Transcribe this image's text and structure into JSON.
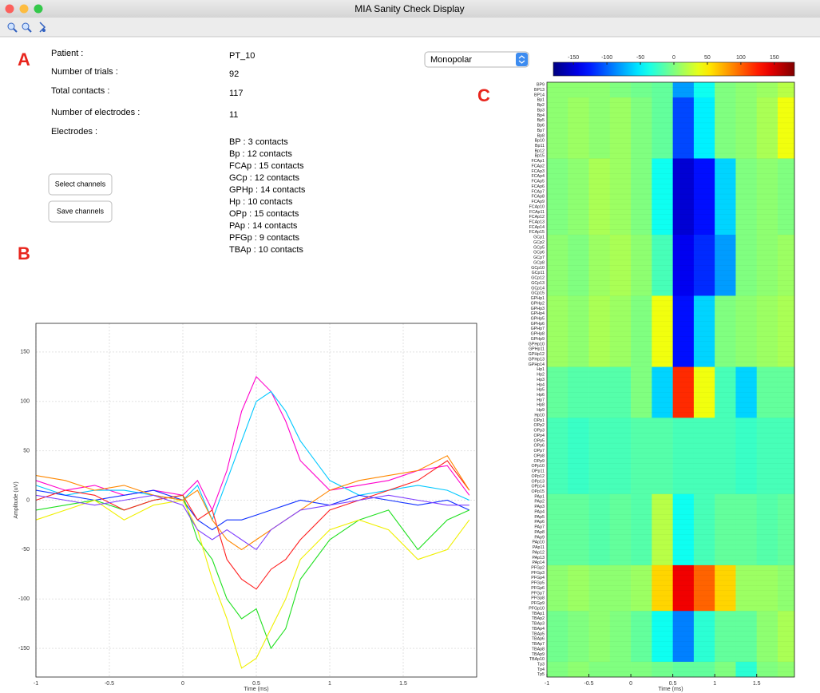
{
  "window_title": "MIA Sanity Check Display",
  "panel_labels": [
    "A",
    "B",
    "C"
  ],
  "info": [
    {
      "label": "Patient :",
      "value": "PT_10"
    },
    {
      "label": "Number of trials :",
      "value": 92
    },
    {
      "label": "Total contacts :",
      "value": 117
    },
    {
      "label": "Number of electrodes :",
      "value": 11
    },
    {
      "label": "Electrodes :"
    }
  ],
  "electrodes": [
    "BP  :  3 contacts",
    "Bp  :  12 contacts",
    "FCAp  :  15 contacts",
    "GCp  :  12 contacts",
    "GPHp  :  14 contacts",
    "Hp  :  10 contacts",
    "OPp  :  15 contacts",
    "PAp  :  14 contacts",
    "PFGp  :  9 contacts",
    "TBAp  :  10 contacts"
  ],
  "buttons": [
    "Select channels",
    "Save channels"
  ],
  "dropdown": "Monopolar",
  "chart_data": [
    {
      "type": "line",
      "xlabel": "Time (ms)",
      "ylabel": "Amplitude (uV)",
      "xlim": [
        -1,
        2
      ],
      "ylim": [
        -179,
        179
      ],
      "xticks": [
        -1,
        -0.5,
        0,
        0.5,
        1,
        1.5
      ],
      "yticks": [
        -150,
        -100,
        -50,
        0,
        50,
        100,
        150
      ],
      "grid": true,
      "x": [
        -1,
        -0.8,
        -0.6,
        -0.4,
        -0.2,
        0,
        0.1,
        0.2,
        0.3,
        0.4,
        0.5,
        0.6,
        0.7,
        0.8,
        1,
        1.2,
        1.4,
        1.6,
        1.8,
        1.95
      ],
      "series": [
        {
          "color": "#ff00cc",
          "values": [
            20,
            10,
            15,
            5,
            10,
            5,
            20,
            -10,
            30,
            90,
            125,
            110,
            80,
            40,
            10,
            15,
            20,
            30,
            35,
            5
          ]
        },
        {
          "color": "#00c8ff",
          "values": [
            15,
            5,
            10,
            10,
            5,
            0,
            15,
            -20,
            20,
            60,
            100,
            110,
            90,
            60,
            20,
            5,
            10,
            15,
            10,
            0
          ]
        },
        {
          "color": "#1030ff",
          "values": [
            10,
            5,
            0,
            5,
            10,
            0,
            -20,
            -30,
            -20,
            -20,
            -15,
            -10,
            -5,
            0,
            -5,
            5,
            0,
            -5,
            0,
            -10
          ]
        },
        {
          "color": "#20e020",
          "values": [
            -10,
            -5,
            0,
            -10,
            0,
            5,
            -40,
            -60,
            -100,
            -120,
            -110,
            -150,
            -130,
            -80,
            -40,
            -20,
            -10,
            -50,
            -20,
            -10
          ]
        },
        {
          "color": "#f0f000",
          "values": [
            -20,
            -10,
            0,
            -20,
            -5,
            0,
            -30,
            -80,
            -120,
            -170,
            -160,
            -130,
            -100,
            -60,
            -30,
            -20,
            -30,
            -60,
            -50,
            -20
          ]
        },
        {
          "color": "#ff2020",
          "values": [
            0,
            10,
            5,
            -10,
            0,
            5,
            -20,
            -10,
            -60,
            -80,
            -90,
            -70,
            -60,
            -40,
            -10,
            0,
            10,
            20,
            40,
            10
          ]
        },
        {
          "color": "#ff8800",
          "values": [
            25,
            20,
            10,
            15,
            5,
            0,
            10,
            -20,
            -40,
            -50,
            -40,
            -30,
            -20,
            -10,
            10,
            20,
            25,
            30,
            45,
            10
          ]
        },
        {
          "color": "#8040ff",
          "values": [
            5,
            0,
            -5,
            0,
            5,
            -5,
            -30,
            -40,
            -30,
            -40,
            -50,
            -30,
            -20,
            -10,
            -5,
            0,
            5,
            0,
            -5,
            -5
          ]
        }
      ]
    },
    {
      "type": "heatmap",
      "xlabel": "Time (ms)",
      "xlim": [
        -1,
        1.95
      ],
      "xticks": [
        -1,
        -0.5,
        0,
        0.5,
        1,
        1.5
      ],
      "xbins": [
        -1,
        -0.75,
        -0.5,
        -0.25,
        0,
        0.25,
        0.5,
        0.75,
        1,
        1.25,
        1.5,
        1.75,
        1.95
      ],
      "clim": [
        -180,
        180
      ],
      "cticks": [
        -150,
        -100,
        -50,
        0,
        50,
        100,
        150
      ],
      "channels": [
        "BP9",
        "BP13",
        "BP14",
        "Bp1",
        "Bp2",
        "Bp3",
        "Bp4",
        "Bp5",
        "Bp6",
        "Bp7",
        "Bp8",
        "Bp10",
        "Bp11",
        "Bp12",
        "Bp15",
        "FCAp1",
        "FCAp2",
        "FCAp3",
        "FCAp4",
        "FCAp5",
        "FCAp6",
        "FCAp7",
        "FCAp8",
        "FCAp9",
        "FCAp10",
        "FCAp11",
        "FCAp12",
        "FCAp13",
        "FCAp14",
        "FCAp15",
        "GCp1",
        "GCp2",
        "GCp5",
        "GCp6",
        "GCp7",
        "GCp8",
        "GCp10",
        "GCp11",
        "GCp12",
        "GCp13",
        "GCp14",
        "GCp15",
        "GPHp1",
        "GPHp2",
        "GPHp3",
        "GPHp4",
        "GPHp5",
        "GPHp6",
        "GPHp7",
        "GPHp8",
        "GPHp9",
        "GPHp10",
        "GPHp11",
        "GPHp12",
        "GPHp13",
        "GPHp14",
        "Hp1",
        "Hp2",
        "Hp3",
        "Hp4",
        "Hp5",
        "Hp6",
        "Hp7",
        "Hp8",
        "Hp9",
        "Hp10",
        "OPp1",
        "OPp2",
        "OPp3",
        "OPp4",
        "OPp5",
        "OPp6",
        "OPp7",
        "OPp8",
        "OPp9",
        "OPp10",
        "OPp11",
        "OPp12",
        "OPp13",
        "OPp14",
        "OPp15",
        "PAp1",
        "PAp2",
        "PAp3",
        "PAp4",
        "PAp5",
        "PAp6",
        "PAp7",
        "PAp8",
        "PAp9",
        "PAp10",
        "PAp11",
        "PAp12",
        "PAp13",
        "PAp14",
        "PFGp2",
        "PFGp3",
        "PFGp4",
        "PFGp5",
        "PFGp6",
        "PFGp7",
        "PFGp8",
        "PFGp9",
        "PFGp10",
        "TBAp1",
        "TBAp2",
        "TBAp3",
        "TBAp4",
        "TBAp5",
        "TBAp6",
        "TBAp7",
        "TBAp8",
        "TBAp9",
        "TBAp10",
        "Tp3",
        "Tp4",
        "Tp5"
      ],
      "z": [
        [
          5,
          5,
          5,
          0,
          -5,
          -10,
          -80,
          -40,
          0,
          5,
          10,
          20
        ],
        [
          5,
          10,
          5,
          10,
          0,
          -10,
          -110,
          -50,
          0,
          5,
          15,
          40
        ],
        [
          0,
          5,
          15,
          10,
          0,
          -40,
          -150,
          -130,
          -60,
          0,
          5,
          0
        ],
        [
          5,
          0,
          10,
          15,
          5,
          -20,
          -140,
          -120,
          -80,
          0,
          5,
          10
        ],
        [
          10,
          5,
          15,
          10,
          0,
          40,
          -130,
          -60,
          0,
          5,
          10,
          15
        ],
        [
          -10,
          -15,
          -15,
          -15,
          0,
          -60,
          120,
          40,
          -20,
          -60,
          -10,
          -10
        ],
        [
          -20,
          -25,
          -20,
          -20,
          -15,
          -15,
          -20,
          -20,
          -20,
          -25,
          -20,
          -20
        ],
        [
          -10,
          -10,
          -15,
          -10,
          -15,
          20,
          -40,
          -20,
          -10,
          -10,
          -15,
          -10
        ],
        [
          5,
          10,
          5,
          5,
          10,
          60,
          140,
          100,
          60,
          10,
          10,
          5
        ],
        [
          -5,
          0,
          5,
          0,
          -10,
          -40,
          -90,
          -30,
          -10,
          -10,
          5,
          15
        ],
        [
          0,
          5,
          0,
          0,
          0,
          -5,
          -10,
          -10,
          0,
          -30,
          0,
          5
        ]
      ]
    }
  ]
}
